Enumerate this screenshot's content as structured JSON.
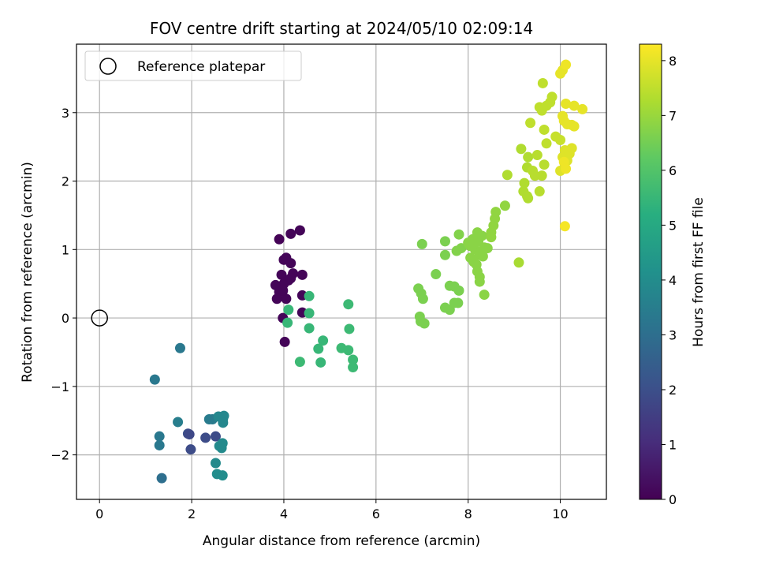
{
  "chart_data": {
    "type": "scatter",
    "title": "FOV centre drift starting at 2024/05/10 02:09:14",
    "xlabel": "Angular distance from reference (arcmin)",
    "ylabel": "Rotation from reference (arcmin)",
    "xlim": [
      -0.5,
      11.0
    ],
    "ylim": [
      -2.65,
      4.0
    ],
    "xticks": [
      0,
      2,
      4,
      6,
      8,
      10
    ],
    "yticks": [
      -2,
      -1,
      0,
      1,
      2,
      3
    ],
    "grid": true,
    "legend": {
      "label": "Reference platepar",
      "position": "top-left"
    },
    "reference_point": {
      "x": 0,
      "y": 0
    },
    "colorbar": {
      "label": "Hours from first FF file",
      "range": [
        0,
        8.3
      ],
      "ticks": [
        0,
        1,
        2,
        3,
        4,
        5,
        6,
        7,
        8
      ],
      "colormap": "viridis"
    },
    "points": [
      {
        "x": 3.9,
        "y": 1.15,
        "t": 0.05
      },
      {
        "x": 4.15,
        "y": 1.23,
        "t": 0.1
      },
      {
        "x": 4.35,
        "y": 1.28,
        "t": 0.1
      },
      {
        "x": 4.0,
        "y": 0.85,
        "t": 0.1
      },
      {
        "x": 4.05,
        "y": 0.88,
        "t": 0.1
      },
      {
        "x": 4.15,
        "y": 0.8,
        "t": 0.1
      },
      {
        "x": 3.95,
        "y": 0.63,
        "t": 0.1
      },
      {
        "x": 4.1,
        "y": 0.55,
        "t": 0.1
      },
      {
        "x": 4.2,
        "y": 0.65,
        "t": 0.1
      },
      {
        "x": 4.4,
        "y": 0.63,
        "t": 0.1
      },
      {
        "x": 4.0,
        "y": 0.5,
        "t": 0.1
      },
      {
        "x": 4.15,
        "y": 0.58,
        "t": 0.1
      },
      {
        "x": 3.82,
        "y": 0.48,
        "t": 0.1
      },
      {
        "x": 3.9,
        "y": 0.38,
        "t": 0.1
      },
      {
        "x": 3.85,
        "y": 0.28,
        "t": 0.1
      },
      {
        "x": 4.05,
        "y": 0.28,
        "t": 0.1
      },
      {
        "x": 3.98,
        "y": 0.4,
        "t": 0.1
      },
      {
        "x": 4.4,
        "y": 0.33,
        "t": 0.1
      },
      {
        "x": 4.4,
        "y": 0.08,
        "t": 0.1
      },
      {
        "x": 3.98,
        "y": 0.0,
        "t": 0.1
      },
      {
        "x": 4.02,
        "y": -0.35,
        "t": 0.1
      },
      {
        "x": 1.2,
        "y": -0.9,
        "t": 3.3
      },
      {
        "x": 1.75,
        "y": -0.44,
        "t": 3.3
      },
      {
        "x": 1.3,
        "y": -1.73,
        "t": 3.3
      },
      {
        "x": 1.3,
        "y": -1.86,
        "t": 3.3
      },
      {
        "x": 1.35,
        "y": -2.34,
        "t": 3.0
      },
      {
        "x": 1.7,
        "y": -1.52,
        "t": 3.5
      },
      {
        "x": 1.92,
        "y": -1.69,
        "t": 2.0
      },
      {
        "x": 1.95,
        "y": -1.7,
        "t": 1.8
      },
      {
        "x": 1.98,
        "y": -1.92,
        "t": 1.9
      },
      {
        "x": 2.3,
        "y": -1.75,
        "t": 1.9
      },
      {
        "x": 2.52,
        "y": -1.73,
        "t": 1.9
      },
      {
        "x": 2.38,
        "y": -1.48,
        "t": 3.4
      },
      {
        "x": 2.45,
        "y": -1.48,
        "t": 3.4
      },
      {
        "x": 2.58,
        "y": -1.44,
        "t": 3.8
      },
      {
        "x": 2.68,
        "y": -1.47,
        "t": 3.8
      },
      {
        "x": 2.7,
        "y": -1.43,
        "t": 3.8
      },
      {
        "x": 2.68,
        "y": -1.53,
        "t": 3.8
      },
      {
        "x": 2.6,
        "y": -1.87,
        "t": 3.9
      },
      {
        "x": 2.65,
        "y": -1.9,
        "t": 3.9
      },
      {
        "x": 2.67,
        "y": -1.83,
        "t": 3.9
      },
      {
        "x": 2.52,
        "y": -2.12,
        "t": 3.9
      },
      {
        "x": 2.55,
        "y": -2.28,
        "t": 4.0
      },
      {
        "x": 2.67,
        "y": -2.3,
        "t": 4.0
      },
      {
        "x": 4.55,
        "y": 0.32,
        "t": 5.5
      },
      {
        "x": 4.1,
        "y": 0.12,
        "t": 5.5
      },
      {
        "x": 4.55,
        "y": 0.07,
        "t": 5.5
      },
      {
        "x": 4.08,
        "y": -0.07,
        "t": 5.5
      },
      {
        "x": 4.55,
        "y": -0.15,
        "t": 5.5
      },
      {
        "x": 4.35,
        "y": -0.64,
        "t": 5.6
      },
      {
        "x": 4.85,
        "y": -0.33,
        "t": 5.5
      },
      {
        "x": 4.75,
        "y": -0.45,
        "t": 5.5
      },
      {
        "x": 4.8,
        "y": -0.65,
        "t": 5.5
      },
      {
        "x": 5.4,
        "y": 0.2,
        "t": 5.6
      },
      {
        "x": 5.42,
        "y": -0.16,
        "t": 5.6
      },
      {
        "x": 5.25,
        "y": -0.44,
        "t": 5.6
      },
      {
        "x": 5.4,
        "y": -0.47,
        "t": 5.6
      },
      {
        "x": 5.5,
        "y": -0.61,
        "t": 5.6
      },
      {
        "x": 5.5,
        "y": -0.72,
        "t": 5.6
      },
      {
        "x": 7.0,
        "y": 1.08,
        "t": 6.6
      },
      {
        "x": 7.5,
        "y": 1.12,
        "t": 6.6
      },
      {
        "x": 7.5,
        "y": 0.92,
        "t": 6.6
      },
      {
        "x": 7.3,
        "y": 0.64,
        "t": 6.6
      },
      {
        "x": 6.92,
        "y": 0.43,
        "t": 6.6
      },
      {
        "x": 6.98,
        "y": 0.36,
        "t": 6.6
      },
      {
        "x": 7.02,
        "y": 0.28,
        "t": 6.6
      },
      {
        "x": 6.95,
        "y": 0.02,
        "t": 6.6
      },
      {
        "x": 6.97,
        "y": -0.05,
        "t": 6.6
      },
      {
        "x": 7.05,
        "y": -0.08,
        "t": 6.6
      },
      {
        "x": 7.6,
        "y": 0.47,
        "t": 6.6
      },
      {
        "x": 7.7,
        "y": 0.46,
        "t": 6.6
      },
      {
        "x": 7.8,
        "y": 0.4,
        "t": 6.6
      },
      {
        "x": 7.5,
        "y": 0.15,
        "t": 6.6
      },
      {
        "x": 7.6,
        "y": 0.12,
        "t": 6.6
      },
      {
        "x": 7.7,
        "y": 0.22,
        "t": 6.6
      },
      {
        "x": 7.78,
        "y": 0.22,
        "t": 6.6
      },
      {
        "x": 7.75,
        "y": 0.98,
        "t": 6.7
      },
      {
        "x": 7.85,
        "y": 1.02,
        "t": 6.7
      },
      {
        "x": 7.8,
        "y": 1.22,
        "t": 6.7
      },
      {
        "x": 8.0,
        "y": 1.1,
        "t": 6.8
      },
      {
        "x": 8.05,
        "y": 1.05,
        "t": 6.8
      },
      {
        "x": 8.1,
        "y": 1.15,
        "t": 6.8
      },
      {
        "x": 8.2,
        "y": 1.25,
        "t": 6.8
      },
      {
        "x": 8.3,
        "y": 1.2,
        "t": 6.8
      },
      {
        "x": 8.22,
        "y": 1.12,
        "t": 6.8
      },
      {
        "x": 8.15,
        "y": 1.0,
        "t": 6.8
      },
      {
        "x": 8.28,
        "y": 0.97,
        "t": 6.8
      },
      {
        "x": 8.35,
        "y": 1.03,
        "t": 6.8
      },
      {
        "x": 8.42,
        "y": 1.02,
        "t": 6.8
      },
      {
        "x": 8.25,
        "y": 0.92,
        "t": 6.8
      },
      {
        "x": 8.32,
        "y": 0.9,
        "t": 6.8
      },
      {
        "x": 8.05,
        "y": 0.88,
        "t": 6.8
      },
      {
        "x": 8.12,
        "y": 0.82,
        "t": 6.8
      },
      {
        "x": 8.18,
        "y": 0.78,
        "t": 6.8
      },
      {
        "x": 8.2,
        "y": 0.68,
        "t": 6.8
      },
      {
        "x": 8.25,
        "y": 0.6,
        "t": 6.8
      },
      {
        "x": 8.25,
        "y": 0.53,
        "t": 6.8
      },
      {
        "x": 8.35,
        "y": 0.34,
        "t": 6.8
      },
      {
        "x": 8.5,
        "y": 1.25,
        "t": 6.9
      },
      {
        "x": 8.55,
        "y": 1.35,
        "t": 6.9
      },
      {
        "x": 8.58,
        "y": 1.45,
        "t": 6.9
      },
      {
        "x": 8.6,
        "y": 1.55,
        "t": 6.9
      },
      {
        "x": 8.8,
        "y": 1.64,
        "t": 6.9
      },
      {
        "x": 8.5,
        "y": 1.18,
        "t": 6.9
      },
      {
        "x": 9.1,
        "y": 0.81,
        "t": 7.2
      },
      {
        "x": 8.85,
        "y": 2.09,
        "t": 7.3
      },
      {
        "x": 9.15,
        "y": 2.47,
        "t": 7.3
      },
      {
        "x": 9.3,
        "y": 2.35,
        "t": 7.3
      },
      {
        "x": 9.28,
        "y": 2.2,
        "t": 7.3
      },
      {
        "x": 9.22,
        "y": 1.97,
        "t": 7.3
      },
      {
        "x": 9.2,
        "y": 1.85,
        "t": 7.3
      },
      {
        "x": 9.28,
        "y": 1.78,
        "t": 7.3
      },
      {
        "x": 9.3,
        "y": 1.75,
        "t": 7.3
      },
      {
        "x": 9.55,
        "y": 1.85,
        "t": 7.4
      },
      {
        "x": 9.4,
        "y": 2.15,
        "t": 7.4
      },
      {
        "x": 9.45,
        "y": 2.08,
        "t": 7.4
      },
      {
        "x": 9.6,
        "y": 2.08,
        "t": 7.4
      },
      {
        "x": 9.65,
        "y": 2.24,
        "t": 7.4
      },
      {
        "x": 9.5,
        "y": 2.38,
        "t": 7.4
      },
      {
        "x": 9.35,
        "y": 2.85,
        "t": 7.5
      },
      {
        "x": 9.55,
        "y": 3.08,
        "t": 7.5
      },
      {
        "x": 9.6,
        "y": 3.03,
        "t": 7.5
      },
      {
        "x": 9.7,
        "y": 3.1,
        "t": 7.5
      },
      {
        "x": 9.78,
        "y": 3.15,
        "t": 7.5
      },
      {
        "x": 9.82,
        "y": 3.23,
        "t": 7.5
      },
      {
        "x": 9.62,
        "y": 3.43,
        "t": 7.5
      },
      {
        "x": 9.65,
        "y": 2.75,
        "t": 7.5
      },
      {
        "x": 9.7,
        "y": 2.55,
        "t": 7.5
      },
      {
        "x": 9.9,
        "y": 2.65,
        "t": 7.6
      },
      {
        "x": 10.0,
        "y": 2.6,
        "t": 7.6
      },
      {
        "x": 10.0,
        "y": 2.15,
        "t": 7.9
      },
      {
        "x": 10.05,
        "y": 2.35,
        "t": 7.9
      },
      {
        "x": 10.1,
        "y": 2.45,
        "t": 7.9
      },
      {
        "x": 10.15,
        "y": 2.3,
        "t": 7.9
      },
      {
        "x": 10.1,
        "y": 2.2,
        "t": 7.9
      },
      {
        "x": 10.2,
        "y": 2.4,
        "t": 7.9
      },
      {
        "x": 10.25,
        "y": 2.48,
        "t": 7.9
      },
      {
        "x": 10.08,
        "y": 2.28,
        "t": 8.1
      },
      {
        "x": 10.12,
        "y": 2.18,
        "t": 8.1
      },
      {
        "x": 10.05,
        "y": 2.95,
        "t": 8.0
      },
      {
        "x": 10.08,
        "y": 2.88,
        "t": 8.0
      },
      {
        "x": 10.15,
        "y": 2.83,
        "t": 8.0
      },
      {
        "x": 10.25,
        "y": 2.82,
        "t": 8.0
      },
      {
        "x": 10.3,
        "y": 2.8,
        "t": 8.0
      },
      {
        "x": 10.12,
        "y": 3.13,
        "t": 8.0
      },
      {
        "x": 10.3,
        "y": 3.1,
        "t": 8.0
      },
      {
        "x": 10.48,
        "y": 3.05,
        "t": 8.0
      },
      {
        "x": 10.0,
        "y": 3.57,
        "t": 8.0
      },
      {
        "x": 10.05,
        "y": 3.62,
        "t": 8.0
      },
      {
        "x": 10.12,
        "y": 3.7,
        "t": 8.1
      },
      {
        "x": 10.1,
        "y": 1.34,
        "t": 8.2
      }
    ]
  }
}
